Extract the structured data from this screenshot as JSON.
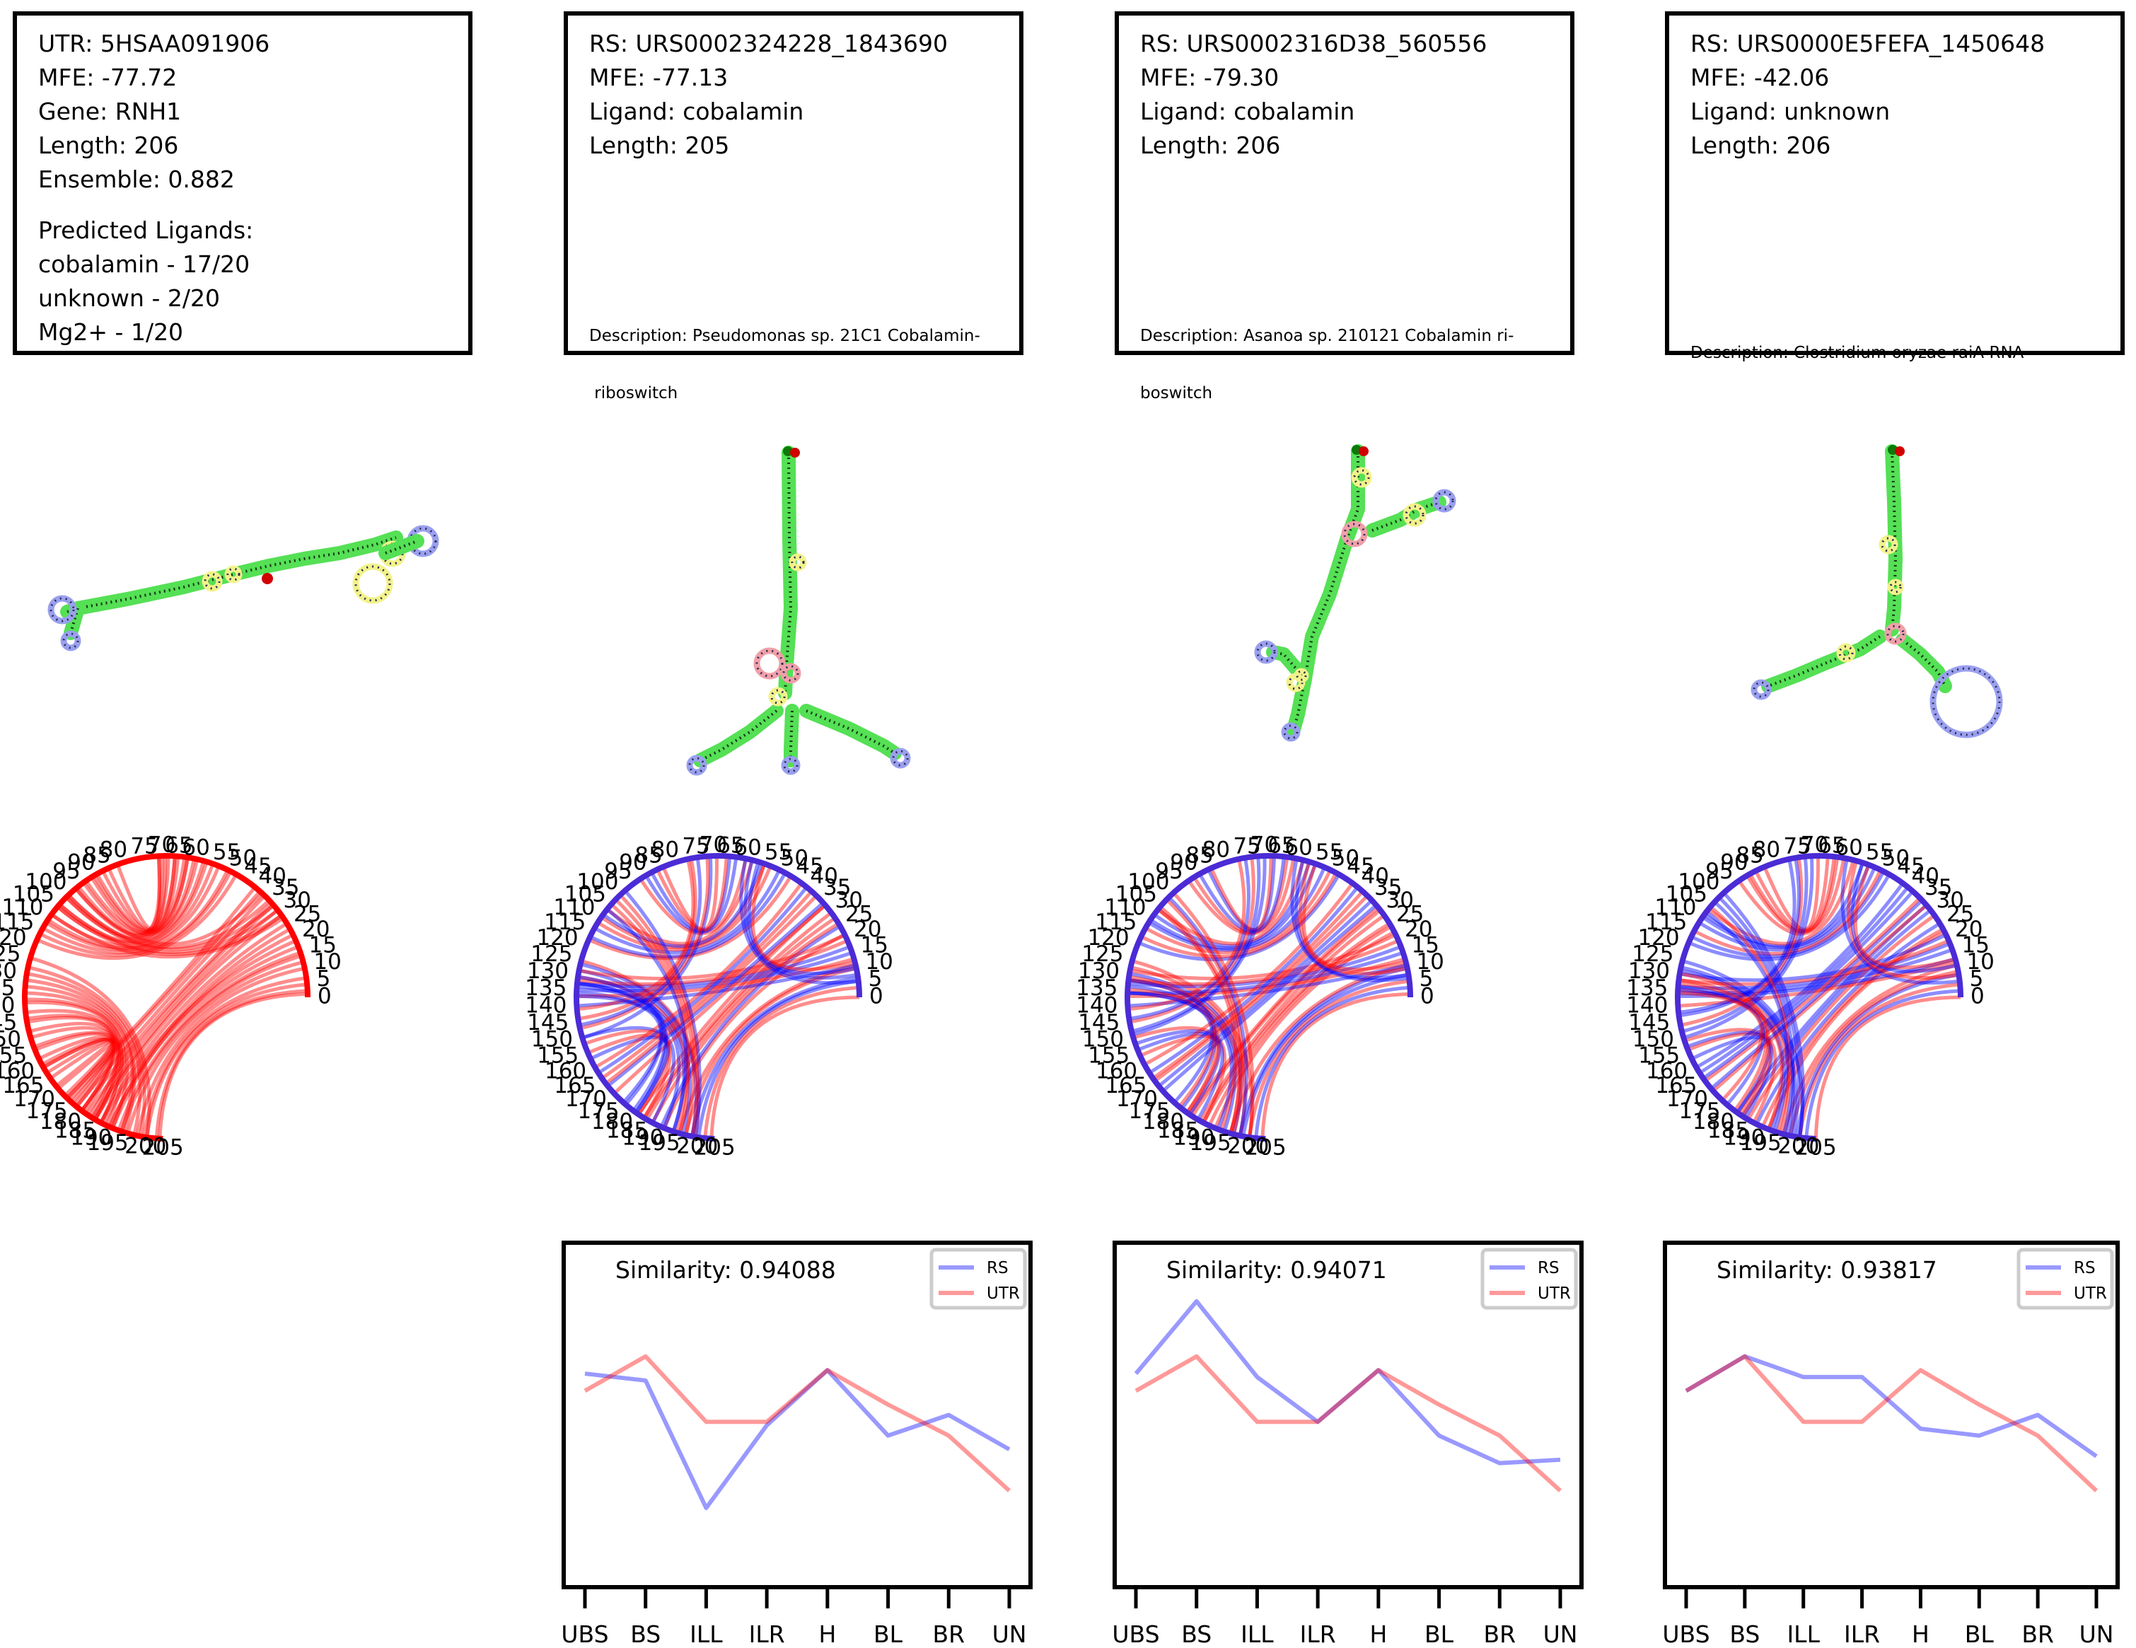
{
  "colors": {
    "rs": "#0000ff",
    "utr": "#ff0000",
    "stem": "#55e055",
    "hairpin": "#9aa0ee",
    "interior": "#f2f28a",
    "multiloop": "#f0a0a8"
  },
  "utr_box": {
    "lines": [
      "UTR: 5HSAA091906",
      "MFE: -77.72",
      "Gene: RNH1",
      "Length: 206",
      "Ensemble: 0.882"
    ],
    "predicted_header": "Predicted Ligands:",
    "predicted": [
      "cobalamin - 17/20",
      "unknown - 2/20",
      "Mg2+ - 1/20"
    ]
  },
  "rs_boxes": [
    {
      "lines": [
        "RS: URS0002324228_1843690",
        "MFE: -77.13",
        "Ligand: cobalamin",
        "Length: 205"
      ],
      "description": [
        "Description: Pseudomonas sp. 21C1 Cobalamin-",
        " riboswitch"
      ]
    },
    {
      "lines": [
        "RS: URS0002316D38_560556",
        "MFE: -79.30",
        "Ligand: cobalamin",
        "Length: 206"
      ],
      "description": [
        "Description: Asanoa sp. 210121 Cobalamin ri-",
        "boswitch"
      ]
    },
    {
      "lines": [
        "RS: URS0000E5FEFA_1450648",
        "MFE: -42.06",
        "Ligand: unknown",
        "Length: 206"
      ],
      "description": [
        "Description: Clostridium oryzae raiA RNA"
      ]
    }
  ],
  "chord_labels": [
    "0",
    "5",
    "10",
    "15",
    "20",
    "25",
    "30",
    "35",
    "40",
    "45",
    "50",
    "55",
    "60",
    "65",
    "70",
    "75",
    "80",
    "85",
    "90",
    "95",
    "100",
    "105",
    "110",
    "115",
    "120",
    "125",
    "130",
    "135",
    "140",
    "145",
    "150",
    "155",
    "160",
    "165",
    "170",
    "175",
    "180",
    "185",
    "190",
    "195",
    "200",
    "205"
  ],
  "chart_data": [
    {
      "type": "line",
      "title": "Similarity: 0.94088",
      "categories": [
        "UBS",
        "BS",
        "ILL",
        "ILR",
        "H",
        "BL",
        "BR",
        "UN"
      ],
      "series": [
        {
          "name": "RS",
          "values": [
            0.62,
            0.6,
            0.23,
            0.47,
            0.63,
            0.44,
            0.5,
            0.4
          ]
        },
        {
          "name": "UTR",
          "values": [
            0.57,
            0.67,
            0.48,
            0.48,
            0.63,
            0.53,
            0.44,
            0.28
          ]
        }
      ],
      "ylim": [
        0,
        1
      ]
    },
    {
      "type": "line",
      "title": "Similarity: 0.94071",
      "categories": [
        "UBS",
        "BS",
        "ILL",
        "ILR",
        "H",
        "BL",
        "BR",
        "UN"
      ],
      "series": [
        {
          "name": "RS",
          "values": [
            0.62,
            0.83,
            0.61,
            0.48,
            0.63,
            0.44,
            0.36,
            0.37
          ]
        },
        {
          "name": "UTR",
          "values": [
            0.57,
            0.67,
            0.48,
            0.48,
            0.63,
            0.53,
            0.44,
            0.28
          ]
        }
      ],
      "ylim": [
        0,
        1
      ]
    },
    {
      "type": "line",
      "title": "Similarity: 0.93817",
      "categories": [
        "UBS",
        "BS",
        "ILL",
        "ILR",
        "H",
        "BL",
        "BR",
        "UN"
      ],
      "series": [
        {
          "name": "RS",
          "values": [
            0.57,
            0.67,
            0.61,
            0.61,
            0.46,
            0.44,
            0.5,
            0.38
          ]
        },
        {
          "name": "UTR",
          "values": [
            0.57,
            0.67,
            0.48,
            0.48,
            0.63,
            0.53,
            0.44,
            0.28
          ]
        }
      ],
      "ylim": [
        0,
        1
      ]
    }
  ]
}
